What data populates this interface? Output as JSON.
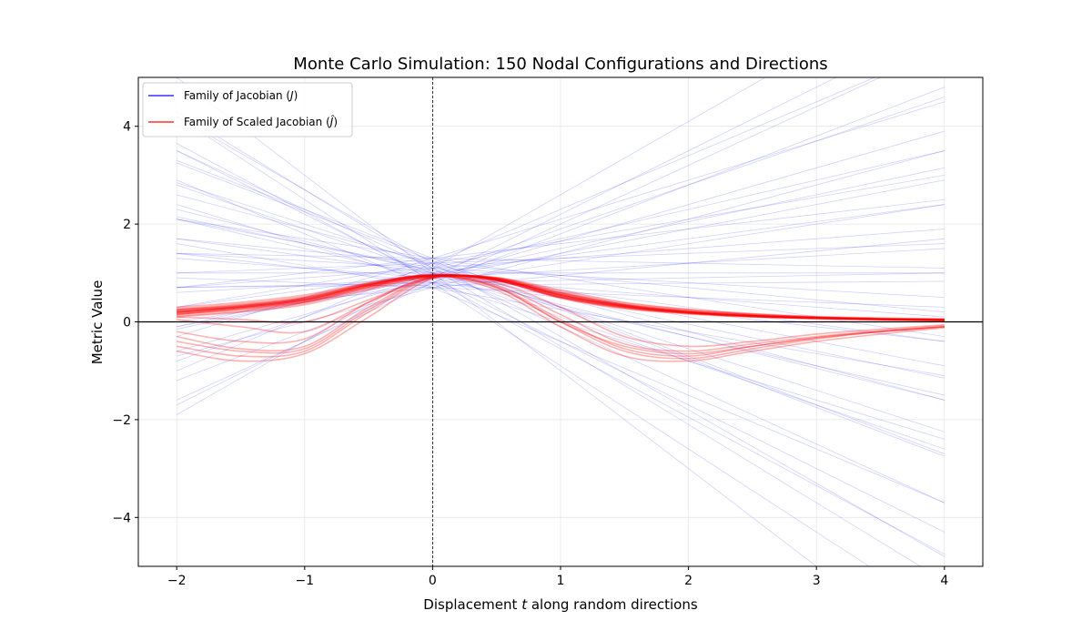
{
  "chart_data": {
    "type": "line",
    "title": "Monte Carlo Simulation: 150 Nodal Configurations and Directions",
    "xlabel_parts": [
      "Displacement ",
      "t",
      " along random directions"
    ],
    "ylabel": "Metric Value",
    "xlim": [
      -2.3,
      4.3
    ],
    "ylim": [
      -5,
      5
    ],
    "xticks": [
      -2,
      -1,
      0,
      1,
      2,
      3,
      4
    ],
    "xtick_labels": [
      "−2",
      "−1",
      "0",
      "1",
      "2",
      "3",
      "4"
    ],
    "yticks": [
      -4,
      -2,
      0,
      2,
      4
    ],
    "ytick_labels": [
      "−4",
      "−2",
      "0",
      "2",
      "4"
    ],
    "grid": true,
    "legend_placement": "top-left",
    "reference_lines": {
      "horizontal_y": 0,
      "vertical_x": 0
    },
    "series": [
      {
        "name": "Family of Jacobian (J)",
        "legend_parts": [
          "Family of Jacobian (",
          "J",
          ")"
        ],
        "color": "#0000ff",
        "x_range": [
          -2,
          4
        ],
        "lines_intercept_slope": [
          [
            1.0,
            -2
          ],
          [
            0.8,
            -1.7
          ],
          [
            1.2,
            -1.5
          ],
          [
            0.9,
            -1.3
          ],
          [
            1.1,
            -1.2
          ],
          [
            0.7,
            -1.1
          ],
          [
            1.3,
            -1
          ],
          [
            1.0,
            -0.9
          ],
          [
            0.8,
            -0.8
          ],
          [
            1.2,
            -0.7
          ],
          [
            0.9,
            -0.6
          ],
          [
            1.1,
            -0.5
          ],
          [
            0.7,
            -0.45
          ],
          [
            1.3,
            -0.4
          ],
          [
            1.0,
            -0.35
          ],
          [
            0.8,
            -0.3
          ],
          [
            1.2,
            -0.25
          ],
          [
            0.9,
            -0.2
          ],
          [
            1.1,
            -0.15
          ],
          [
            0.7,
            -0.1
          ],
          [
            1.3,
            -0.05
          ],
          [
            1.0,
            0
          ],
          [
            0.8,
            0.05
          ],
          [
            1.2,
            0.1
          ],
          [
            0.9,
            0.15
          ],
          [
            1.1,
            0.2
          ],
          [
            0.7,
            0.25
          ],
          [
            1.3,
            0.3
          ],
          [
            1.0,
            0.35
          ],
          [
            0.8,
            0.4
          ],
          [
            1.2,
            0.45
          ],
          [
            0.9,
            0.5
          ],
          [
            1.1,
            0.6
          ],
          [
            0.7,
            0.7
          ],
          [
            1.3,
            0.8
          ],
          [
            1.0,
            0.9
          ],
          [
            0.8,
            1.0
          ],
          [
            1.2,
            1.1
          ],
          [
            0.9,
            1.3
          ],
          [
            1.1,
            1.5
          ],
          [
            0.85,
            -1.4
          ],
          [
            1.05,
            -0.55
          ],
          [
            0.95,
            0.55
          ],
          [
            1.15,
            -0.85
          ],
          [
            0.75,
            0.02
          ],
          [
            1.25,
            -1.0
          ],
          [
            0.9,
            0.75
          ],
          [
            1.0,
            -0.65
          ],
          [
            0.8,
            1.2
          ],
          [
            1.1,
            -1.6
          ]
        ]
      },
      {
        "name": "Family of Scaled Jacobian (Ĵ)",
        "legend_parts": [
          "Family of Scaled Jacobian (",
          "Ĵ",
          ")"
        ],
        "color": "#ff0000",
        "x": [
          -2,
          -1.5,
          -1,
          -0.5,
          0,
          0.5,
          1,
          1.5,
          2,
          2.5,
          3,
          3.5,
          4
        ],
        "curves": [
          [
            0.2,
            0.3,
            0.45,
            0.75,
            0.95,
            0.88,
            0.55,
            0.32,
            0.2,
            0.12,
            0.08,
            0.05,
            0.04
          ],
          [
            0.15,
            0.25,
            0.4,
            0.7,
            0.93,
            0.9,
            0.6,
            0.35,
            0.22,
            0.14,
            0.09,
            0.06,
            0.05
          ],
          [
            0.25,
            0.35,
            0.5,
            0.78,
            0.96,
            0.85,
            0.5,
            0.28,
            0.17,
            0.1,
            0.07,
            0.04,
            0.03
          ],
          [
            0.1,
            0.2,
            0.35,
            0.65,
            0.92,
            0.9,
            0.62,
            0.38,
            0.25,
            0.16,
            0.1,
            0.07,
            0.05
          ],
          [
            0.3,
            0.4,
            0.55,
            0.8,
            0.97,
            0.86,
            0.52,
            0.3,
            0.18,
            0.11,
            0.07,
            0.05,
            0.03
          ],
          [
            0.18,
            0.28,
            0.43,
            0.72,
            0.94,
            0.87,
            0.57,
            0.34,
            0.21,
            0.13,
            0.09,
            0.06,
            0.04
          ],
          [
            0.22,
            0.32,
            0.48,
            0.76,
            0.95,
            0.89,
            0.58,
            0.36,
            0.23,
            0.15,
            0.1,
            0.07,
            0.06
          ],
          [
            0.12,
            0.22,
            0.38,
            0.68,
            0.93,
            0.91,
            0.65,
            0.4,
            0.26,
            0.17,
            0.11,
            0.08,
            0.06
          ],
          [
            0.27,
            0.37,
            0.52,
            0.79,
            0.96,
            0.84,
            0.48,
            0.27,
            0.16,
            0.1,
            0.06,
            0.04,
            0.02
          ],
          [
            0.2,
            0.31,
            0.46,
            0.74,
            0.95,
            0.88,
            0.56,
            0.33,
            0.2,
            0.12,
            0.08,
            0.05,
            0.04
          ],
          [
            0.16,
            0.26,
            0.41,
            0.71,
            0.94,
            0.89,
            0.59,
            0.35,
            0.22,
            0.14,
            0.09,
            0.06,
            0.05
          ],
          [
            0.24,
            0.34,
            0.49,
            0.77,
            0.96,
            0.87,
            0.54,
            0.31,
            0.19,
            0.11,
            0.07,
            0.05,
            0.03
          ],
          [
            0.2,
            0.3,
            0.45,
            0.75,
            0.95,
            0.7,
            0.0,
            -0.6,
            -0.75,
            -0.55,
            -0.35,
            -0.2,
            -0.1
          ],
          [
            0.15,
            0.28,
            0.42,
            0.72,
            0.94,
            0.75,
            0.15,
            -0.45,
            -0.6,
            -0.45,
            -0.3,
            -0.18,
            -0.08
          ],
          [
            0.25,
            0.33,
            0.48,
            0.77,
            0.95,
            0.65,
            -0.1,
            -0.7,
            -0.8,
            -0.6,
            -0.4,
            -0.25,
            -0.12
          ],
          [
            0.18,
            0.29,
            0.44,
            0.74,
            0.94,
            0.8,
            0.3,
            -0.3,
            -0.5,
            -0.4,
            -0.25,
            -0.15,
            -0.06
          ],
          [
            0.22,
            0.31,
            0.46,
            0.76,
            0.95,
            0.72,
            0.05,
            -0.55,
            -0.7,
            -0.5,
            -0.33,
            -0.2,
            -0.1
          ],
          [
            -0.5,
            -0.7,
            -0.6,
            0.2,
            0.9,
            0.85,
            0.5,
            0.3,
            0.18,
            0.12,
            0.08,
            0.05,
            0.03
          ],
          [
            -0.3,
            -0.55,
            -0.5,
            0.3,
            0.92,
            0.86,
            0.52,
            0.31,
            0.19,
            0.12,
            0.08,
            0.05,
            0.03
          ],
          [
            -0.6,
            -0.8,
            -0.65,
            0.1,
            0.88,
            0.84,
            0.5,
            0.29,
            0.18,
            0.11,
            0.07,
            0.05,
            0.03
          ],
          [
            -0.2,
            -0.4,
            -0.35,
            0.4,
            0.93,
            0.87,
            0.55,
            0.33,
            0.2,
            0.13,
            0.08,
            0.06,
            0.04
          ],
          [
            -0.4,
            -0.6,
            -0.55,
            0.25,
            0.9,
            0.7,
            0.0,
            -0.5,
            -0.65,
            -0.5,
            -0.32,
            -0.2,
            -0.1
          ],
          [
            0.1,
            0.05,
            0.0,
            0.45,
            0.92,
            0.88,
            0.55,
            0.33,
            0.2,
            0.13,
            0.08,
            0.05,
            0.04
          ],
          [
            0.05,
            -0.1,
            -0.2,
            0.4,
            0.91,
            0.86,
            0.53,
            0.32,
            0.19,
            0.12,
            0.08,
            0.05,
            0.04
          ]
        ]
      }
    ]
  }
}
